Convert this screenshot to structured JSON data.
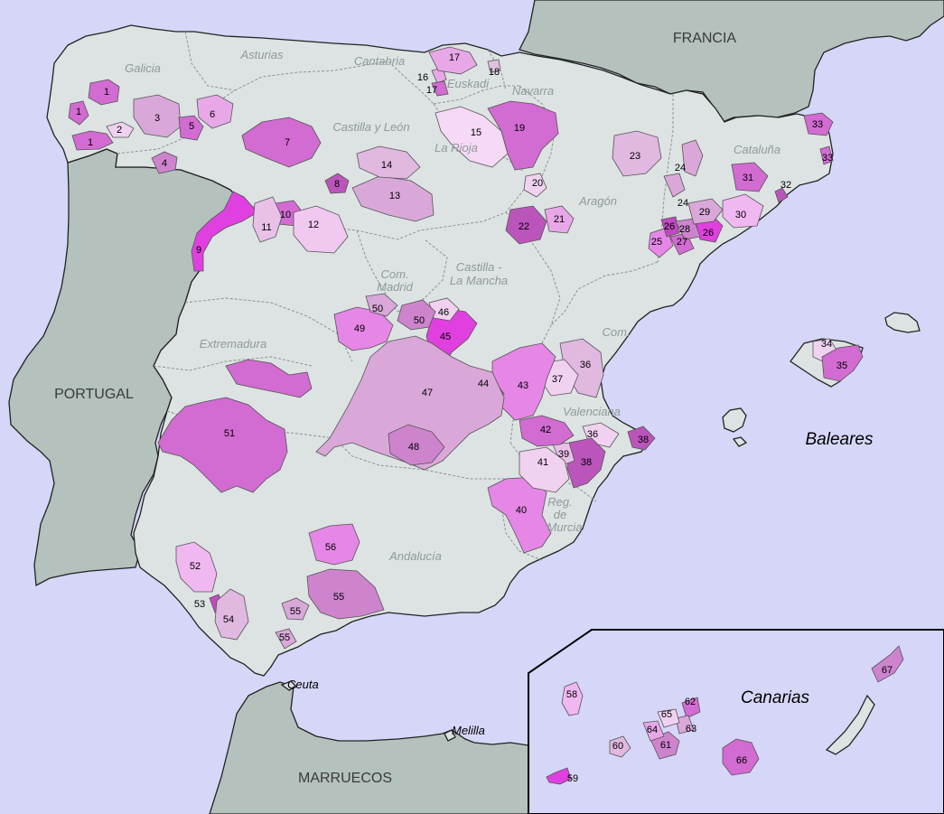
{
  "countries": {
    "portugal": "PORTUGAL",
    "francia": "FRANCIA",
    "marruecos": "MARRUECOS"
  },
  "islands": {
    "baleares": "Baleares",
    "canarias": "Canarias"
  },
  "cities": {
    "ceuta": "Ceuta",
    "melilla": "Melilla"
  },
  "regions": {
    "galicia": "Galicia",
    "asturias": "Asturias",
    "cantabria": "Cantabria",
    "euskadi": "Euskadi",
    "navarra": "Navarra",
    "la_rioja": "La Rioja",
    "castilla_leon": "Castilla y León",
    "aragon": "Aragón",
    "cataluna": "Cataluña",
    "com_madrid_1": "Com.",
    "com_madrid_2": "Madrid",
    "castilla_mancha_1": "Castilla -",
    "castilla_mancha_2": "La Mancha",
    "extremadura": "Extremadura",
    "com_valenciana_1": "Com.",
    "com_valenciana_2": "Valenciana",
    "murcia_1": "Reg.",
    "murcia_2": "de",
    "murcia_3": "Murcia",
    "andalucia": "Andalucía"
  },
  "zones": {
    "z1a": "1",
    "z1b": "1",
    "z1c": "1",
    "z2": "2",
    "z3": "3",
    "z4": "4",
    "z5": "5",
    "z6": "6",
    "z7": "7",
    "z8": "8",
    "z9": "9",
    "z10": "10",
    "z11": "11",
    "z12": "12",
    "z13": "13",
    "z14": "14",
    "z15": "15",
    "z16": "16",
    "z17a": "17",
    "z17b": "17",
    "z18": "18",
    "z19": "19",
    "z20": "20",
    "z21": "21",
    "z22": "22",
    "z23": "23",
    "z24a": "24",
    "z24b": "24",
    "z25": "25",
    "z26a": "26",
    "z26b": "26",
    "z27": "27",
    "z28": "28",
    "z29": "29",
    "z30": "30",
    "z31": "31",
    "z32": "32",
    "z33a": "33",
    "z33b": "33",
    "z34": "34",
    "z35": "35",
    "z36a": "36",
    "z36b": "36",
    "z37": "37",
    "z38a": "38",
    "z38b": "38",
    "z39": "39",
    "z40": "40",
    "z41": "41",
    "z42": "42",
    "z43": "43",
    "z44": "44",
    "z45": "45",
    "z46": "46",
    "z47": "47",
    "z48": "48",
    "z49": "49",
    "z50a": "50",
    "z50b": "50",
    "z51": "51",
    "z52": "52",
    "z53": "53",
    "z54": "54",
    "z55a": "55",
    "z55b": "55",
    "z55c": "55",
    "z56": "56",
    "z58": "58",
    "z59": "59",
    "z60": "60",
    "z61": "61",
    "z62": "62",
    "z63": "63",
    "z64": "64",
    "z65": "65",
    "z66": "66",
    "z67": "67"
  },
  "colors": {
    "sea": "#d6d6f8",
    "spain": "#dde2e2",
    "foreign": "#b4c1bd",
    "shade_light": "#f0d2f0",
    "shade_pale": "#d9a8d9",
    "shade_mid": "#cd84cd",
    "shade_pink": "#e686e6",
    "shade_strong": "#d26bd2",
    "shade_dark": "#bb55bb",
    "shade_magenta": "#e040e0"
  }
}
